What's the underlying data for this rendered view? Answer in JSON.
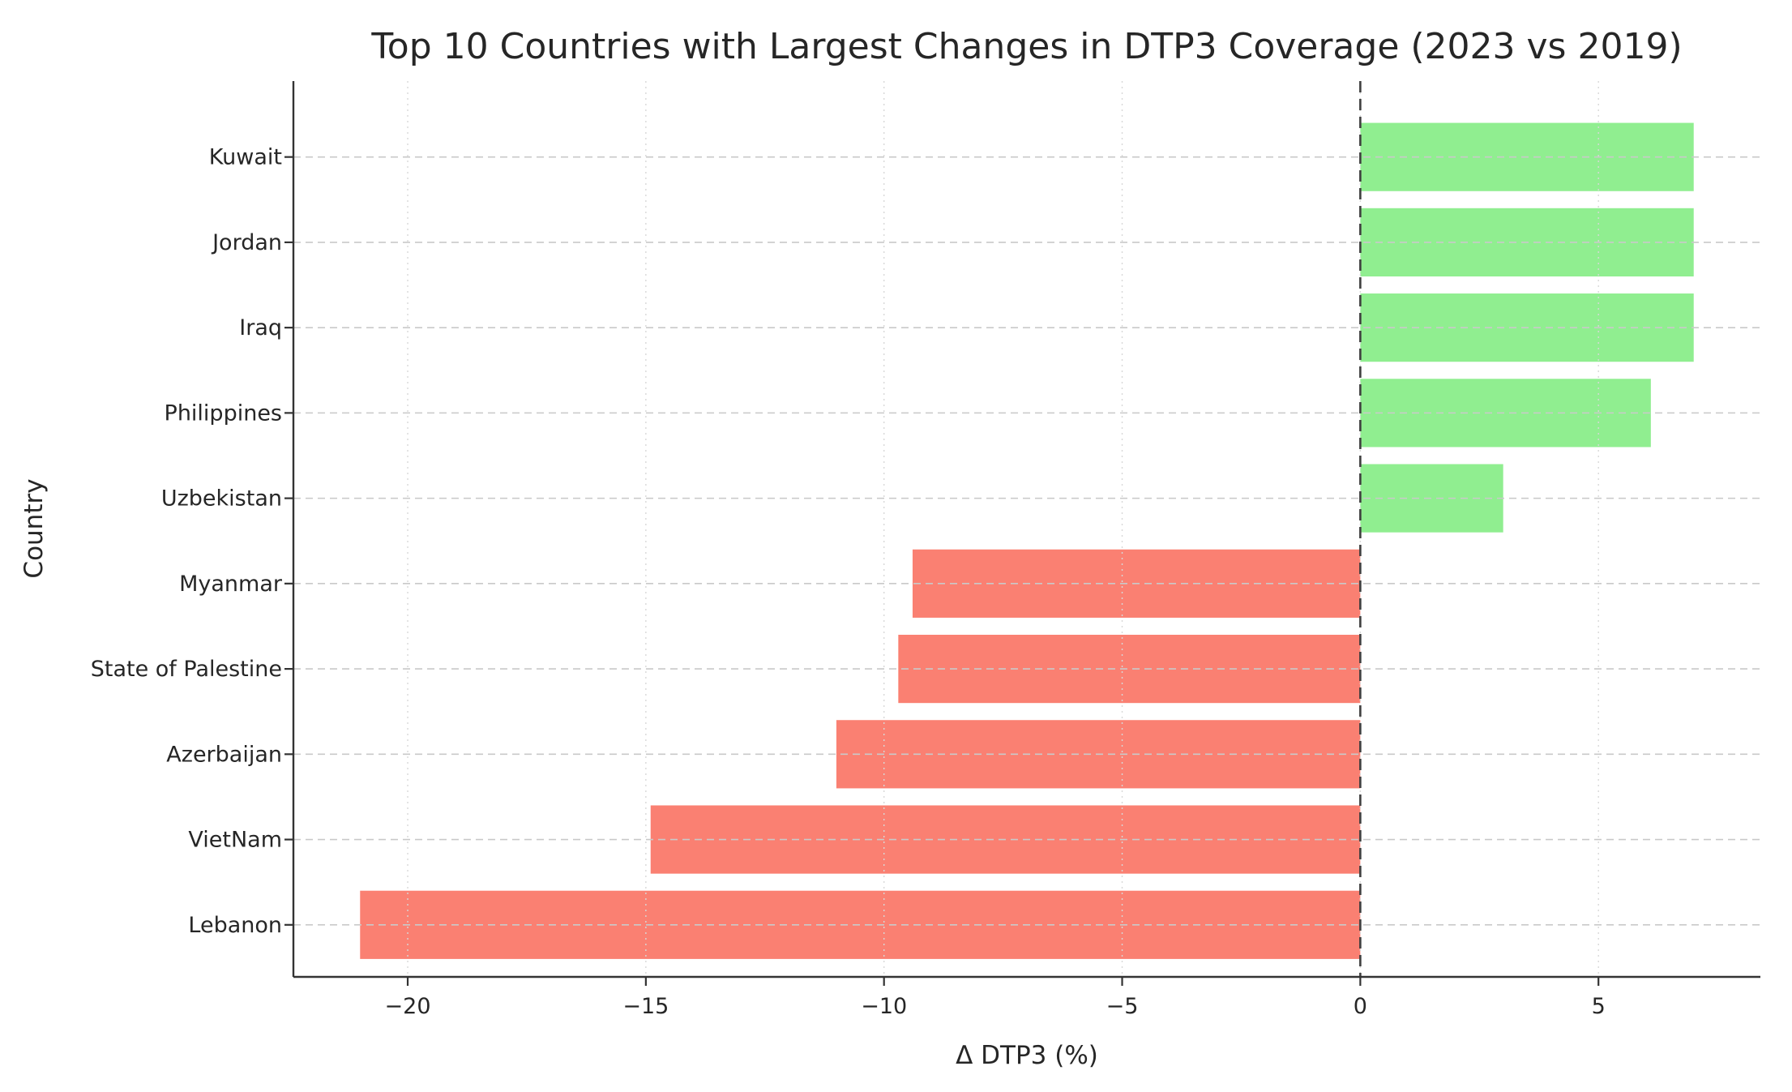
{
  "chart_data": {
    "type": "bar",
    "orientation": "horizontal",
    "title": "Top 10 Countries with Largest Changes in DTP3 Coverage (2023 vs 2019)",
    "xlabel": "Δ DTP3 (%)",
    "ylabel": "Country",
    "row_order": "top_to_bottom",
    "categories": [
      "Kuwait",
      "Jordan",
      "Iraq",
      "Philippines",
      "Uzbekistan",
      "Myanmar",
      "State of Palestine",
      "Azerbaijan",
      "VietNam",
      "Lebanon"
    ],
    "values": [
      7.0,
      7.0,
      7.0,
      6.1,
      3.0,
      -9.4,
      -9.7,
      -11.0,
      -14.9,
      -21.0
    ],
    "xlim": [
      -22.4,
      8.4
    ],
    "xticks": [
      -20,
      -15,
      -10,
      -5,
      0,
      5
    ],
    "xtick_labels": [
      "−20",
      "−15",
      "−10",
      "−5",
      "0",
      "5"
    ],
    "grid": true,
    "legend": false,
    "zero_line_x": 0,
    "style": {
      "positive_color": "#90EE90",
      "negative_color": "#FA8072",
      "zero_line_color": "#3f3f3f",
      "grid_major_color": "#c9c9c9",
      "grid_minor_color": "#d8d8d8",
      "axis_color": "#333333",
      "text_color": "#262626",
      "background": "#ffffff"
    }
  }
}
